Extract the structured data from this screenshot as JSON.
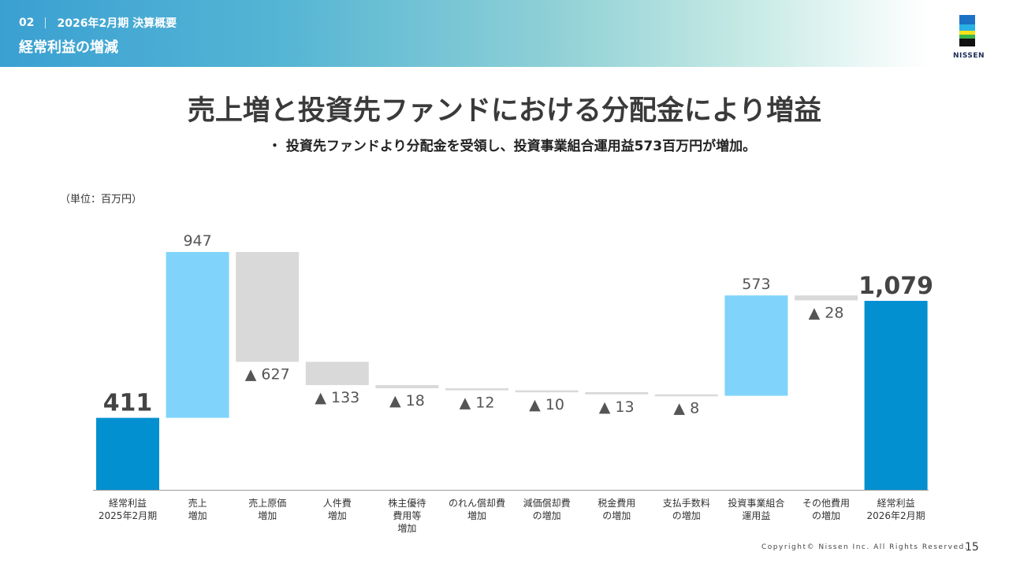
{
  "header": {
    "section_number": "02",
    "section_label": "2026年2月期 決算概要",
    "page_title": "経常利益の増減"
  },
  "logo": {
    "text": "NISSEN"
  },
  "slide": {
    "title": "売上増と投資先ファンドにおける分配金により増益",
    "subtitle": "・ 投資先ファンドより分配金を受領し、投資事業組合運用益573百万円が増加。",
    "unit": "（単位：百万円）"
  },
  "colors": {
    "total": "#0290d1",
    "increase": "#80d4fb",
    "decrease": "#d9d9d9",
    "value_text": "#555555",
    "total_text": "#444444"
  },
  "chart_data": {
    "type": "bar",
    "subtype": "waterfall",
    "title": "経常利益の増減",
    "unit": "百万円",
    "ylim": [
      0,
      1350
    ],
    "steps": [
      {
        "label": [
          "経常利益",
          "2025年2月期"
        ],
        "kind": "total",
        "value": 411,
        "display": "411"
      },
      {
        "label": [
          "売上",
          "増加"
        ],
        "kind": "increase",
        "value": 947,
        "display": "947"
      },
      {
        "label": [
          "売上原価",
          "増加"
        ],
        "kind": "decrease",
        "value": -627,
        "display": "▲ 627"
      },
      {
        "label": [
          "人件費",
          "増加"
        ],
        "kind": "decrease",
        "value": -133,
        "display": "▲ 133"
      },
      {
        "label": [
          "株主優待",
          "費用等",
          "増加"
        ],
        "kind": "decrease",
        "value": -18,
        "display": "▲ 18"
      },
      {
        "label": [
          "のれん償却費",
          "増加"
        ],
        "kind": "decrease",
        "value": -12,
        "display": "▲ 12"
      },
      {
        "label": [
          "減価償却費",
          "の増加"
        ],
        "kind": "decrease",
        "value": -10,
        "display": "▲ 10"
      },
      {
        "label": [
          "税金費用",
          "の増加"
        ],
        "kind": "decrease",
        "value": -13,
        "display": "▲ 13"
      },
      {
        "label": [
          "支払手数料",
          "の増加"
        ],
        "kind": "decrease",
        "value": -8,
        "display": "▲ 8"
      },
      {
        "label": [
          "投資事業組合",
          "運用益"
        ],
        "kind": "increase",
        "value": 573,
        "display": "573"
      },
      {
        "label": [
          "その他費用",
          "の増加"
        ],
        "kind": "decrease",
        "value": -28,
        "display": "▲ 28"
      },
      {
        "label": [
          "経常利益",
          "2026年2月期"
        ],
        "kind": "total",
        "value": 1079,
        "display": "1,079"
      }
    ]
  },
  "footer": {
    "copyright": "Copyright© Nissen Inc. All Rights Reserved.",
    "page_number": "15"
  }
}
